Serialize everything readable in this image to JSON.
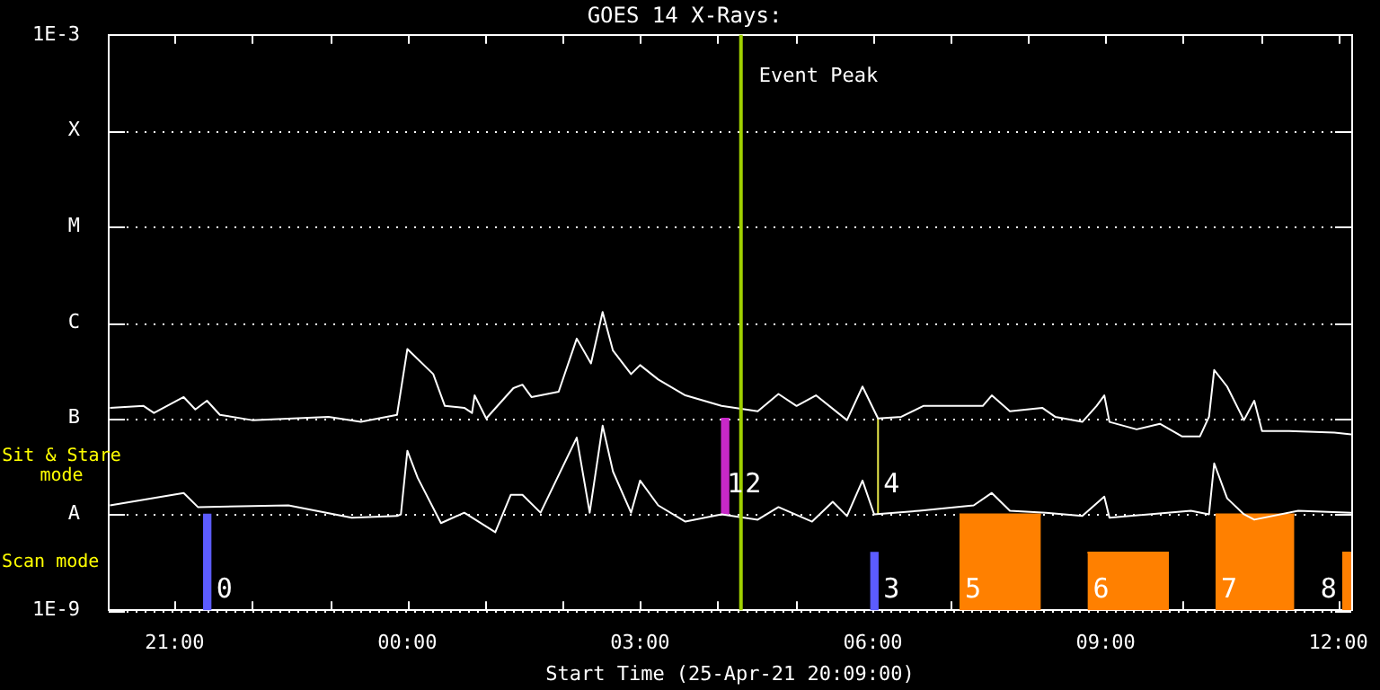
{
  "chart_data": {
    "type": "line",
    "title": "GOES 14 X-Rays:",
    "xlabel": "Start Time (25-Apr-21 20:09:00)",
    "log": "y",
    "grid": "y",
    "legend": false,
    "marker": "none",
    "line_style": "solid",
    "xlim": [
      "--04-25T20:09",
      "--04-26T12:10"
    ],
    "xticks": [
      {
        "value": "--04-25T21:00",
        "label": "21:00"
      },
      {
        "value": "--04-25T22:00",
        "label": null
      },
      {
        "value": "--04-25T23:00",
        "label": null
      },
      {
        "value": "--04-26T00:00",
        "label": "00:00"
      },
      {
        "value": "--04-26T01:00",
        "label": null
      },
      {
        "value": "--04-26T02:00",
        "label": null
      },
      {
        "value": "--04-26T03:00",
        "label": "03:00"
      },
      {
        "value": "--04-26T04:00",
        "label": null
      },
      {
        "value": "--04-26T05:00",
        "label": null
      },
      {
        "value": "--04-26T06:00",
        "label": "06:00"
      },
      {
        "value": "--04-26T07:00",
        "label": null
      },
      {
        "value": "--04-26T08:00",
        "label": null
      },
      {
        "value": "--04-26T09:00",
        "label": "09:00"
      },
      {
        "value": "--04-26T10:00",
        "label": null
      },
      {
        "value": "--04-26T11:00",
        "label": null
      },
      {
        "value": "--04-26T12:00",
        "label": "12:00"
      }
    ],
    "ylim": [
      1e-09,
      0.001
    ],
    "yticks": [
      {
        "value": 1e-09,
        "label": "1E-9"
      },
      {
        "value": 1e-08,
        "label": "A"
      },
      {
        "value": 1e-07,
        "label": "B"
      },
      {
        "value": 1e-06,
        "label": "C"
      },
      {
        "value": 1e-05,
        "label": "M"
      },
      {
        "value": 0.0001,
        "label": "X"
      },
      {
        "value": 0.001,
        "label": "1E-3"
      }
    ],
    "series": [
      {
        "color": "#ffffff",
        "x": [
          "--04-25T20:10",
          "--04-25T20:36",
          "--04-25T20:44",
          "--04-25T21:07",
          "--04-25T21:16",
          "--04-25T21:25",
          "--04-25T21:35",
          "--04-25T22:00",
          "--04-25T22:59",
          "--04-25T23:24",
          "--04-25T23:52",
          "--04-26T00:00",
          "--04-26T00:20",
          "--04-26T00:29",
          "--04-26T00:44",
          "--04-26T00:50",
          "--04-26T00:52",
          "--04-26T01:01",
          "--04-26T01:22",
          "--04-26T01:29",
          "--04-26T01:36",
          "--04-26T01:57",
          "--04-26T02:11",
          "--04-26T02:22",
          "--04-26T02:31",
          "--04-26T02:39",
          "--04-26T02:53",
          "--04-26T03:00",
          "--04-26T03:14",
          "--04-26T03:35",
          "--04-26T04:03",
          "--04-26T04:31",
          "--04-26T04:47",
          "--04-26T05:01",
          "--04-26T05:16",
          "--04-26T05:40",
          "--04-26T05:52",
          "--04-26T06:04",
          "--04-26T06:22",
          "--04-26T06:39",
          "--04-26T07:25",
          "--04-26T07:32",
          "--04-26T07:46",
          "--04-26T08:11",
          "--04-26T08:21",
          "--04-26T08:42",
          "--04-26T08:53",
          "--04-26T08:59",
          "--04-26T09:03",
          "--04-26T09:24",
          "--04-26T09:42",
          "--04-26T09:59",
          "--04-26T10:13",
          "--04-26T10:20",
          "--04-26T10:24",
          "--04-26T10:34",
          "--04-26T10:47",
          "--04-26T10:55",
          "--04-26T11:01",
          "--04-26T11:22",
          "--04-26T11:57",
          "--04-26T12:10"
        ],
        "values": [
          1.29e-07,
          1.35e-07,
          1.14e-07,
          1.67e-07,
          1.24e-07,
          1.53e-07,
          1.09e-07,
          9.6e-08,
          1.04e-07,
          9.2e-08,
          1.09e-07,
          5.3e-07,
          2.9e-07,
          1.35e-07,
          1.29e-07,
          1.14e-07,
          1.74e-07,
          1e-07,
          2.07e-07,
          2.25e-07,
          1.67e-07,
          1.9e-07,
          6.8e-07,
          3.75e-07,
          1.29e-06,
          5.1e-07,
          2.9e-07,
          3.6e-07,
          2.55e-07,
          1.74e-07,
          1.35e-07,
          1.19e-07,
          1.8e-07,
          1.35e-07,
          1.74e-07,
          9.6e-08,
          2.15e-07,
          1e-07,
          1.04e-07,
          1.35e-07,
          1.35e-07,
          1.74e-07,
          1.19e-07,
          1.29e-07,
          1.04e-07,
          9.2e-08,
          1.35e-07,
          1.74e-07,
          9.2e-08,
          7.7e-08,
          8.8e-08,
          6.5e-08,
          6.5e-08,
          1.04e-07,
          3.2e-07,
          2.15e-07,
          9.6e-08,
          1.53e-07,
          7.4e-08,
          7.4e-08,
          7.1e-08,
          6.8e-08
        ]
      },
      {
        "color": "#ffffff",
        "x": [
          "--04-25T20:10",
          "--04-25T21:07",
          "--04-25T21:18",
          "--04-25T22:28",
          "--04-25T23:17",
          "--04-25T23:52",
          "--04-25T23:55",
          "--04-26T00:00",
          "--04-26T00:08",
          "--04-26T00:26",
          "--04-26T00:44",
          "--04-26T01:08",
          "--04-26T01:20",
          "--04-26T01:29",
          "--04-26T01:43",
          "--04-26T02:11",
          "--04-26T02:21",
          "--04-26T02:31",
          "--04-26T02:39",
          "--04-26T02:53",
          "--04-26T03:00",
          "--04-26T03:14",
          "--04-26T03:35",
          "--04-26T04:03",
          "--04-26T04:31",
          "--04-26T04:47",
          "--04-26T05:13",
          "--04-26T05:29",
          "--04-26T05:40",
          "--04-26T05:52",
          "--04-26T06:01",
          "--04-26T06:36",
          "--04-26T07:18",
          "--04-26T07:32",
          "--04-26T07:46",
          "--04-26T08:14",
          "--04-26T08:42",
          "--04-26T08:59",
          "--04-26T09:03",
          "--04-26T10:06",
          "--04-26T10:20",
          "--04-26T10:24",
          "--04-26T10:34",
          "--04-26T10:47",
          "--04-26T10:55",
          "--04-26T11:29",
          "--04-26T12:10"
        ],
        "values": [
          1.24e-08,
          1.67e-08,
          1.19e-08,
          1.24e-08,
          9.2e-09,
          9.6e-09,
          1e-08,
          4.6e-08,
          2.4e-08,
          8.1e-09,
          1.04e-08,
          6.5e-09,
          1.6e-08,
          1.6e-08,
          1.04e-08,
          6.3e-08,
          1.04e-08,
          8.4e-08,
          2.8e-08,
          1.04e-08,
          2.25e-08,
          1.24e-08,
          8.4e-09,
          1e-08,
          8.8e-09,
          1.19e-08,
          8.4e-09,
          1.35e-08,
          9.6e-09,
          2.25e-08,
          1e-08,
          1.09e-08,
          1.24e-08,
          1.67e-08,
          1.09e-08,
          1.04e-08,
          9.6e-09,
          1.53e-08,
          9.2e-09,
          1.09e-08,
          1e-08,
          3.4e-08,
          1.47e-08,
          1e-08,
          8.8e-09,
          1.09e-08,
          1.04e-08
        ]
      },
      {
        "type": "bar",
        "color": "#5c5cff",
        "x": [
          "--04-25T21:28",
          "--04-26T06:04"
        ],
        "base": [
          1e-09,
          1e-09
        ],
        "values": [
          9e-09,
          3e-09
        ]
      },
      {
        "type": "bar",
        "color": "#c828c8",
        "x": [
          "--04-26T04:03"
        ],
        "base": [
          1e-08
        ],
        "values": [
          9e-08
        ]
      },
      {
        "type": "line",
        "color": "#e8e84a",
        "x": [
          "--04-26T06:04",
          "--04-26T06:04"
        ],
        "values": [
          1e-08,
          1e-07
        ]
      },
      {
        "type": "area",
        "color": "#ff8000",
        "x": [
          "--04-26T07:07",
          "--04-26T08:10",
          "--04-26T08:30",
          "--04-26T08:46",
          "--04-26T09:49",
          "--04-26T10:06",
          "--04-26T10:25",
          "--04-26T11:26",
          "--04-26T11:42",
          "--04-26T12:03",
          "--04-26T12:10"
        ],
        "values": [
          1e-08,
          1e-08,
          null,
          4e-09,
          4e-09,
          null,
          1e-08,
          1e-08,
          null,
          4e-09,
          4e-09
        ]
      }
    ],
    "ref_lines": [
      {
        "axis": "x",
        "value": "--04-26T04:18",
        "label": "Event Peak",
        "color": "#a0d000"
      }
    ],
    "annotations": [
      "Sit & Stare mode",
      "Scan mode",
      {
        "text": "0",
        "x": "--04-25T21:28",
        "y": 1.6e-09
      },
      {
        "text": "1",
        "x": "--04-26T04:03",
        "y": 2e-08
      },
      {
        "text": "2",
        "x": "--04-26T04:03",
        "y": 2e-08
      },
      {
        "text": "3",
        "x": "--04-26T06:04",
        "y": 1.6e-09
      },
      {
        "text": "4",
        "x": "--04-26T06:04",
        "y": 2e-08
      },
      {
        "text": "5",
        "x": "--04-26T07:07",
        "y": 1.6e-09
      },
      {
        "text": "6",
        "x": "--04-26T08:46",
        "y": 1.6e-09
      },
      {
        "text": "7",
        "x": "--04-26T10:25",
        "y": 1.6e-09
      },
      {
        "text": "8",
        "x": "--04-26T12:03",
        "y": 1.6e-09
      }
    ]
  }
}
